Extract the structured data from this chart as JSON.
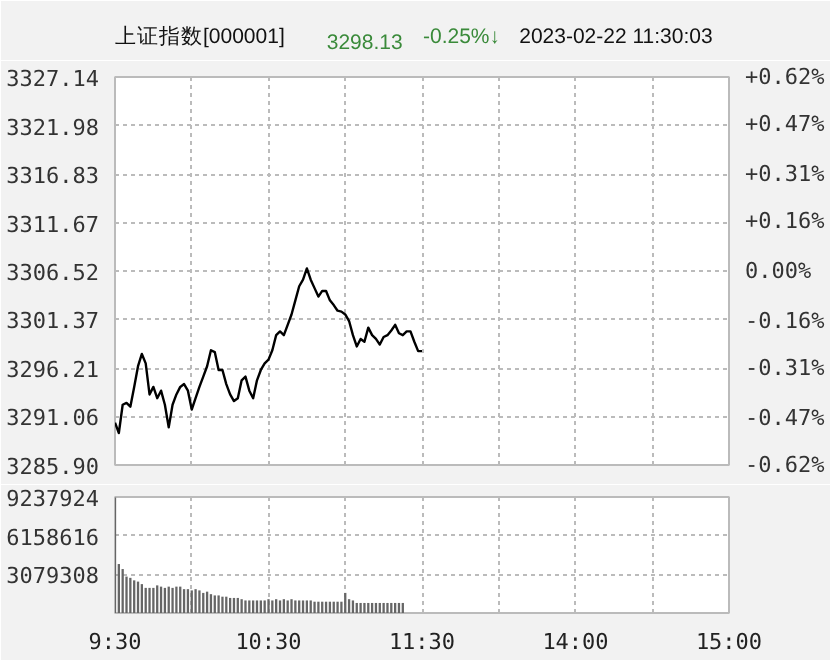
{
  "chart_data": [
    {
      "type": "line",
      "title": "上证指数[000001]",
      "annotations": [
        "3298.13",
        "-0.25%↓",
        "2023-02-22 11:30:03"
      ],
      "categories": [
        null,
        null,
        null,
        null,
        null,
        null,
        null,
        null,
        null,
        null,
        null,
        null,
        null,
        null,
        null,
        null,
        null,
        null,
        null,
        null,
        null,
        null,
        null,
        null,
        null,
        null,
        null,
        null,
        null,
        null,
        null,
        null,
        null,
        null,
        null,
        null,
        null,
        null,
        null,
        null,
        null,
        null,
        null,
        null,
        null,
        null,
        null,
        null,
        null,
        null,
        null,
        null,
        null,
        null,
        null,
        null,
        null,
        null,
        null,
        null,
        null,
        null,
        null,
        null,
        null,
        null,
        null,
        null,
        null,
        null,
        null,
        null,
        null,
        null,
        null,
        null,
        null,
        null,
        null,
        null,
        null,
        null,
        null,
        null,
        null,
        null,
        null,
        null,
        null,
        null,
        null,
        null,
        null,
        null,
        null,
        null,
        null,
        null,
        null,
        null,
        null,
        null,
        null,
        null,
        null,
        null,
        null,
        null,
        null,
        null,
        null,
        null,
        null,
        null,
        null,
        null,
        null,
        null,
        null,
        null,
        null,
        null,
        null,
        null,
        null,
        null,
        null,
        null,
        null,
        null,
        null,
        null,
        null,
        null,
        null,
        null,
        null,
        null,
        null,
        null,
        null,
        null,
        null,
        null,
        null,
        null,
        null,
        null,
        null,
        null,
        null,
        null,
        null,
        null,
        null,
        null,
        null,
        null,
        null,
        null,
        null
      ],
      "series": [
        {
          "color": "#000000",
          "values": [
            3290.4,
            3289.3,
            3292.3,
            3292.5,
            3292.1,
            3294.2,
            3296.4,
            3297.7,
            3296.7,
            3293.4,
            3294.2,
            3293.0,
            3293.8,
            3292.3,
            3289.9,
            3292.3,
            3293.4,
            3294.2,
            3294.5,
            3293.8,
            3291.8,
            3293.0,
            3294.2,
            3295.3,
            3296.4,
            3298.1,
            3297.9,
            3296.0,
            3296.0,
            3294.5,
            3293.4,
            3292.7,
            3293.0,
            3294.9,
            3295.3,
            3293.8,
            3293.0,
            3294.9,
            3296.0,
            3296.7,
            3297.1,
            3298.1,
            3299.7,
            3300.1,
            3299.7,
            3300.8,
            3301.9,
            3303.4,
            3304.9,
            3305.6,
            3306.8,
            3305.6,
            3304.7,
            3303.8,
            3304.4,
            3304.4,
            3303.4,
            3302.9,
            3302.3,
            3302.2,
            3301.9,
            3301.2,
            3299.7,
            3298.5,
            3299.3,
            3299.0,
            3300.5,
            3299.7,
            3299.3,
            3298.7,
            3299.5,
            3299.7,
            3300.2,
            3300.8,
            3299.9,
            3299.7,
            3300.1,
            3300.1,
            3299.0,
            3298.0,
            3298.0,
            null,
            null,
            null,
            null,
            null,
            null,
            null,
            null,
            null,
            null,
            null,
            null,
            null,
            null,
            null,
            null,
            null,
            null,
            null,
            null,
            null,
            null,
            null,
            null,
            null,
            null,
            null,
            null,
            null,
            null,
            null,
            null,
            null,
            null,
            null,
            null,
            null,
            null,
            null,
            null,
            null,
            null,
            null,
            null,
            null,
            null,
            null,
            null,
            null,
            null,
            null,
            null,
            null,
            null,
            null,
            null,
            null,
            null,
            null,
            null,
            null,
            null,
            null,
            null,
            null,
            null,
            null,
            null,
            null,
            null,
            null,
            null,
            null,
            null,
            null,
            null,
            null,
            null,
            null,
            null
          ]
        }
      ],
      "ylim": [
        3285.9,
        3327.14
      ],
      "yticks": [
        {
          "value": 3285.9,
          "label": "3285.90"
        },
        {
          "value": 3291.06,
          "label": "3291.06"
        },
        {
          "value": 3296.21,
          "label": "3296.21"
        },
        {
          "value": 3301.37,
          "label": "3301.37"
        },
        {
          "value": 3306.52,
          "label": "3306.52"
        },
        {
          "value": 3311.67,
          "label": "3311.67"
        },
        {
          "value": 3316.83,
          "label": "3316.83"
        },
        {
          "value": 3321.98,
          "label": "3321.98"
        },
        {
          "value": 3327.14,
          "label": "3327.14"
        }
      ],
      "y2lim": [
        -0.62,
        0.62
      ],
      "y2ticks": [
        {
          "value": -0.62,
          "label": "-0.62%"
        },
        {
          "value": -0.47,
          "label": "-0.47%"
        },
        {
          "value": -0.31,
          "label": "-0.31%"
        },
        {
          "value": -0.16,
          "label": "-0.16%"
        },
        {
          "value": 0,
          "label": "0.00%"
        },
        {
          "value": 0.16,
          "label": "+0.16%"
        },
        {
          "value": 0.31,
          "label": "+0.31%"
        },
        {
          "value": 0.47,
          "label": "+0.47%"
        },
        {
          "value": 0.62,
          "label": "+0.62%"
        }
      ],
      "grid": true,
      "tick_labels": "y",
      "line_style": "solid"
    },
    {
      "type": "bar",
      "categories": [
        "9:30",
        null,
        null,
        null,
        null,
        null,
        null,
        null,
        null,
        null,
        null,
        null,
        null,
        null,
        null,
        null,
        null,
        null,
        null,
        null,
        null,
        null,
        null,
        null,
        null,
        null,
        null,
        null,
        null,
        null,
        null,
        null,
        null,
        null,
        null,
        null,
        null,
        null,
        null,
        null,
        "10:30",
        null,
        null,
        null,
        null,
        null,
        null,
        null,
        null,
        null,
        null,
        null,
        null,
        null,
        null,
        null,
        null,
        null,
        null,
        null,
        null,
        null,
        null,
        null,
        null,
        null,
        null,
        null,
        null,
        null,
        null,
        null,
        null,
        null,
        null,
        null,
        null,
        null,
        null,
        null,
        "11:30",
        null,
        null,
        null,
        null,
        null,
        null,
        null,
        null,
        null,
        null,
        null,
        null,
        null,
        null,
        null,
        null,
        null,
        null,
        null,
        null,
        null,
        null,
        null,
        null,
        null,
        null,
        null,
        null,
        null,
        null,
        null,
        null,
        null,
        null,
        null,
        null,
        null,
        null,
        null,
        "14:00",
        null,
        null,
        null,
        null,
        null,
        null,
        null,
        null,
        null,
        null,
        null,
        null,
        null,
        null,
        null,
        null,
        null,
        null,
        null,
        null,
        null,
        null,
        null,
        null,
        null,
        null,
        null,
        null,
        null,
        null,
        null,
        null,
        null,
        null,
        null,
        null,
        null,
        null,
        null,
        "15:00"
      ],
      "series": [
        {
          "color": "#666666",
          "values": [
            9200000,
            3900000,
            3500000,
            2900000,
            2800000,
            2600000,
            2500000,
            2300000,
            2000000,
            2000000,
            2000000,
            2200000,
            2100000,
            2000000,
            2100000,
            2000000,
            2100000,
            2100000,
            1900000,
            1900000,
            1800000,
            1900000,
            1800000,
            1600000,
            1700000,
            1500000,
            1400000,
            1400000,
            1300000,
            1300000,
            1200000,
            1200000,
            1200000,
            1100000,
            1000000,
            1000000,
            1000000,
            1000000,
            1000000,
            1000000,
            1100000,
            1000000,
            1100000,
            1000000,
            1100000,
            1000000,
            1100000,
            1000000,
            1000000,
            1000000,
            1000000,
            1000000,
            900000,
            900000,
            900000,
            900000,
            900000,
            900000,
            900000,
            900000,
            1600000,
            1100000,
            1000000,
            800000,
            800000,
            800000,
            800000,
            800000,
            800000,
            800000,
            800000,
            800000,
            800000,
            800000,
            800000,
            800000,
            null,
            null,
            null,
            null,
            null,
            null,
            null,
            null,
            null,
            null,
            null,
            null,
            null,
            null,
            null,
            null,
            null,
            null,
            null,
            null,
            null,
            null,
            null,
            null,
            null,
            null,
            null,
            null,
            null,
            null,
            null,
            null,
            null,
            null,
            null,
            null,
            null,
            null,
            null,
            null,
            null,
            null,
            null,
            null,
            null,
            null,
            null,
            null,
            null,
            null,
            null,
            null,
            null,
            null,
            null,
            null,
            null,
            null,
            null,
            null,
            null,
            null,
            null,
            null,
            null,
            null,
            null,
            null,
            null,
            null,
            null,
            null,
            null,
            null,
            null,
            null,
            null,
            null,
            null,
            null,
            null,
            null,
            null,
            null,
            null
          ]
        }
      ],
      "ylim": [
        0,
        9237924
      ],
      "yticks": [
        3079308,
        6158616,
        9237924
      ],
      "grid": true
    }
  ]
}
